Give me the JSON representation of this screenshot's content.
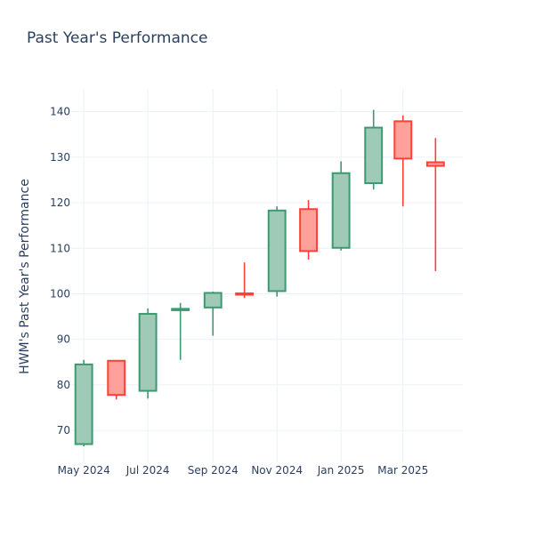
{
  "chart_data": {
    "type": "candlestick",
    "title": "Past Year's Performance",
    "xlabel": "",
    "ylabel": "HWM's Past Year's Performance",
    "ylim": [
      63,
      145
    ],
    "yticks": [
      70,
      80,
      90,
      100,
      110,
      120,
      130,
      140
    ],
    "xlim": [
      "2024-04-19",
      "2025-04-27"
    ],
    "xticks": [
      {
        "date": "2024-05-01",
        "label": "May 2024"
      },
      {
        "date": "2024-07-01",
        "label": "Jul 2024"
      },
      {
        "date": "2024-09-01",
        "label": "Sep 2024"
      },
      {
        "date": "2024-11-01",
        "label": "Nov 2024"
      },
      {
        "date": "2025-01-01",
        "label": "Jan 2025"
      },
      {
        "date": "2025-03-01",
        "label": "Mar 2025"
      }
    ],
    "grid": true,
    "legend": "none",
    "colors": {
      "increasing_line": "#3d9970",
      "increasing_fill": "#9ecab7",
      "decreasing_line": "#ff4136",
      "decreasing_fill": "#ffa09b",
      "grid": "#ebf0f8",
      "text": "#2a3f5f"
    },
    "candles": [
      {
        "date": "2024-05-01",
        "open": 67.0,
        "high": 85.5,
        "low": 66.5,
        "close": 84.5
      },
      {
        "date": "2024-06-01",
        "open": 85.3,
        "high": 85.3,
        "low": 76.8,
        "close": 77.8
      },
      {
        "date": "2024-07-01",
        "open": 78.7,
        "high": 96.8,
        "low": 77.0,
        "close": 95.6
      },
      {
        "date": "2024-08-01",
        "open": 96.6,
        "high": 98.0,
        "low": 85.5,
        "close": 96.7
      },
      {
        "date": "2024-09-01",
        "open": 97.0,
        "high": 100.5,
        "low": 90.8,
        "close": 100.2
      },
      {
        "date": "2024-10-01",
        "open": 100.1,
        "high": 106.9,
        "low": 99.1,
        "close": 99.8
      },
      {
        "date": "2024-11-01",
        "open": 100.6,
        "high": 119.2,
        "low": 99.4,
        "close": 118.3
      },
      {
        "date": "2024-12-01",
        "open": 118.6,
        "high": 120.6,
        "low": 107.5,
        "close": 109.4
      },
      {
        "date": "2025-01-01",
        "open": 110.1,
        "high": 129.1,
        "low": 109.5,
        "close": 126.5
      },
      {
        "date": "2025-02-01",
        "open": 124.3,
        "high": 140.4,
        "low": 122.9,
        "close": 136.5
      },
      {
        "date": "2025-03-01",
        "open": 137.9,
        "high": 139.2,
        "low": 119.2,
        "close": 129.7
      },
      {
        "date": "2025-04-01",
        "open": 128.9,
        "high": 134.2,
        "low": 105.0,
        "close": 128.1
      }
    ]
  }
}
